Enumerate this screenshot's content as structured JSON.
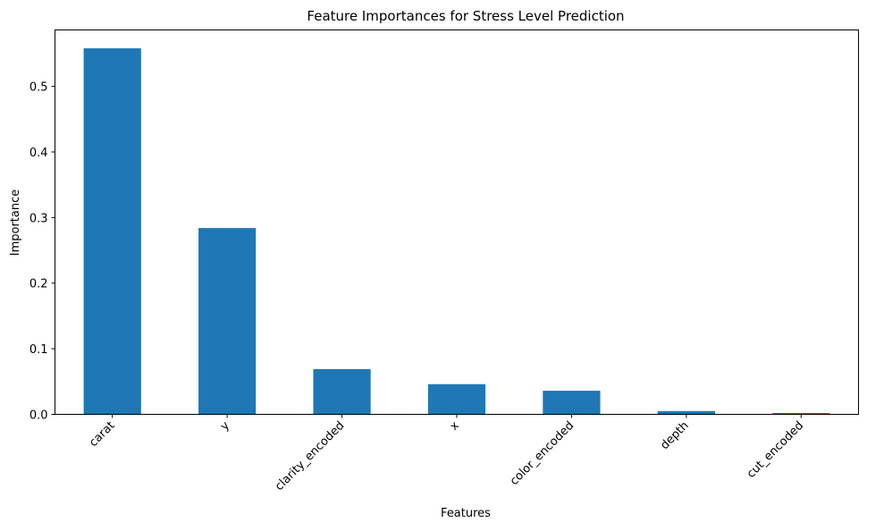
{
  "chart_data": {
    "type": "bar",
    "title": "Feature Importances for Stress Level Prediction",
    "xlabel": "Features",
    "ylabel": "Importance",
    "categories": [
      "carat",
      "y",
      "clarity_encoded",
      "x",
      "color_encoded",
      "depth",
      "cut_encoded"
    ],
    "values": [
      0.558,
      0.284,
      0.069,
      0.046,
      0.036,
      0.005,
      0.002
    ],
    "ylim": [
      0,
      0.586
    ],
    "yticks": [
      0.0,
      0.1,
      0.2,
      0.3,
      0.4,
      0.5
    ],
    "ytick_labels": [
      "0.0",
      "0.1",
      "0.2",
      "0.3",
      "0.4",
      "0.5"
    ],
    "bar_color": "#1f77b4",
    "grid": false,
    "legend": "none"
  }
}
